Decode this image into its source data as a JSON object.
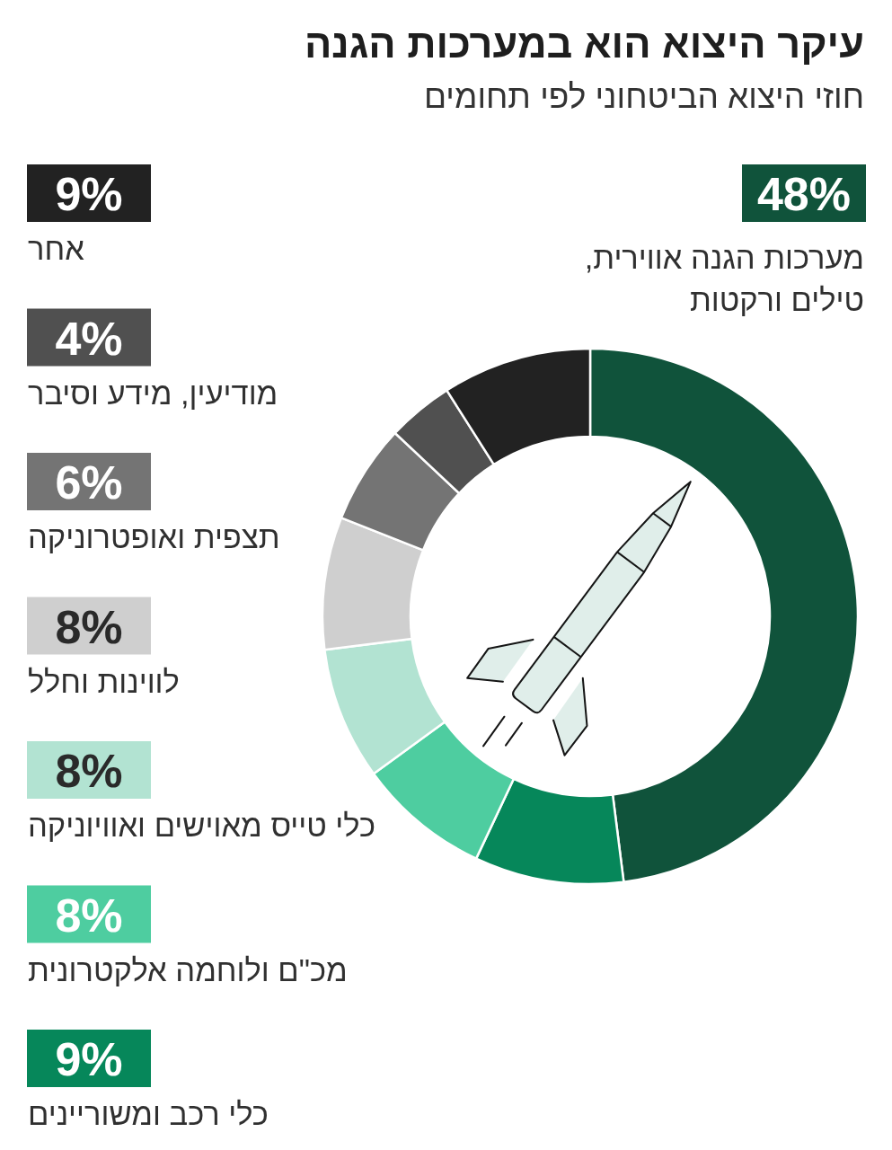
{
  "chart_data": {
    "type": "donut",
    "title": "עיקר היצוא הוא במערכות הגנה",
    "subtitle": "חוזי היצוא הביטחוני לפי תחומים",
    "categories": [
      "מערכות הגנה אווירית, טילים ורקטות",
      "כלי רכב ומשוריינים",
      "מכ\"ם ולוחמה אלקטרונית",
      "כלי טייס מאוישים ואוויוניקה",
      "לווינות וחלל",
      "תצפית ואופטרוניקה",
      "מודיעין, מידע וסיבר",
      "אחר"
    ],
    "values": [
      48,
      9,
      8,
      8,
      8,
      6,
      4,
      9
    ],
    "colors": [
      "#10533b",
      "#06875a",
      "#4ecda0",
      "#b2e3d2",
      "#cfcfcf",
      "#747474",
      "#505050",
      "#222222"
    ],
    "value_labels": [
      "48%",
      "9%",
      "8%",
      "8%",
      "8%",
      "6%",
      "4%",
      "9%"
    ],
    "legend": "left"
  }
}
